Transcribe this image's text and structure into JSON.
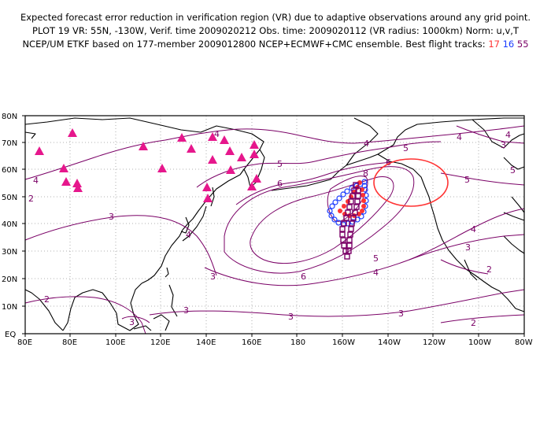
{
  "header": {
    "line1": "Expected forecast error reduction in verification region (VR) due to adaptive observations around any grid point.",
    "line2": "PLOT 19 VR: 55N, -130W, Verif. time 2009020212 Obs. time: 2009020112 (VR radius: 1000km) Norm: u,v,T",
    "line3_prefix": "NCEP/UM ETKF based on 177-member 2009012800 NCEP+ECMWF+CMC ensemble. Best flight tracks:",
    "track_a": "17",
    "track_b": "16",
    "track_c": "55"
  },
  "map": {
    "lat_labels": [
      "80N",
      "70N",
      "60N",
      "50N",
      "40N",
      "30N",
      "20N",
      "10N",
      "EQ"
    ],
    "lon_labels": [
      "80E",
      "80E",
      "100E",
      "120E",
      "140E",
      "160E",
      "180",
      "160W",
      "140W",
      "120W",
      "100W",
      "80W"
    ],
    "contour_labels": [
      "4",
      "4",
      "4",
      "4",
      "5",
      "5",
      "6",
      "6",
      "8",
      "5",
      "4",
      "3",
      "3",
      "3",
      "3",
      "3",
      "2",
      "2",
      "2",
      "3",
      "4",
      "5",
      "6",
      "3",
      "3",
      "2",
      "5",
      "4",
      "4"
    ],
    "colors": {
      "contour": "#7a0066",
      "track_17": "#ff3333",
      "track_16": "#1a3cff",
      "track_55": "#7a0066",
      "triangles": "#e6178c",
      "verification_region": "#ff3333"
    }
  }
}
